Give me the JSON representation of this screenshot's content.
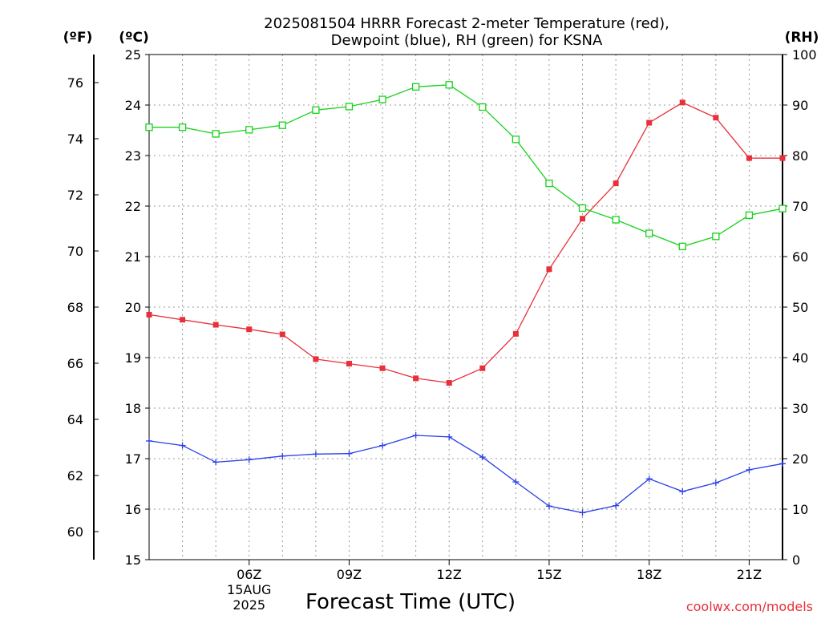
{
  "chart_data": {
    "type": "line",
    "title_line1": "2025081504 HRRR Forecast 2-meter Temperature (red),",
    "title_line2": "Dewpoint (blue), RH (green) for KSNA",
    "xlabel": "Forecast Time (UTC)",
    "credit": "coolwx.com/models",
    "unit_labels": {
      "fahrenheit": "(ºF)",
      "celsius": "(ºC)",
      "rh": "(RH)"
    },
    "x_range": [
      3,
      22
    ],
    "x": [
      3,
      4,
      5,
      6,
      7,
      8,
      9,
      10,
      11,
      12,
      13,
      14,
      15,
      16,
      17,
      18,
      19,
      20,
      21,
      22
    ],
    "x_ticks": [
      {
        "x": 6,
        "label": "06Z",
        "sub1": "15AUG",
        "sub2": "2025"
      },
      {
        "x": 9,
        "label": "09Z"
      },
      {
        "x": 12,
        "label": "12Z"
      },
      {
        "x": 15,
        "label": "15Z"
      },
      {
        "x": 18,
        "label": "18Z"
      },
      {
        "x": 21,
        "label": "21Z"
      }
    ],
    "celsius_range": [
      15,
      25
    ],
    "celsius_ticks": [
      "15",
      "16",
      "17",
      "18",
      "19",
      "20",
      "21",
      "22",
      "23",
      "24",
      "25"
    ],
    "fahrenheit_ticks": [
      "60",
      "62",
      "64",
      "66",
      "68",
      "70",
      "72",
      "74",
      "76"
    ],
    "rh_range": [
      0,
      100
    ],
    "rh_ticks": [
      "0",
      "10",
      "20",
      "30",
      "40",
      "50",
      "60",
      "70",
      "80",
      "90",
      "100"
    ],
    "series": [
      {
        "name": "Temperature",
        "axis": "celsius",
        "color": "#e8303a",
        "marker": "filled-square",
        "values": [
          19.85,
          19.75,
          19.65,
          19.56,
          19.46,
          18.97,
          18.88,
          18.79,
          18.59,
          18.5,
          18.79,
          19.47,
          20.75,
          21.75,
          22.45,
          23.65,
          24.05,
          23.75,
          22.95,
          22.95
        ]
      },
      {
        "name": "Dewpoint",
        "axis": "celsius",
        "color": "#2a3ee8",
        "marker": "plus",
        "values": [
          17.35,
          17.26,
          16.93,
          16.98,
          17.05,
          17.09,
          17.1,
          17.26,
          17.46,
          17.43,
          17.03,
          16.54,
          16.06,
          15.93,
          16.07,
          16.6,
          16.35,
          16.52,
          16.78,
          16.9
        ]
      },
      {
        "name": "RH",
        "axis": "rh",
        "color": "#18d21c",
        "marker": "open-square",
        "values": [
          85.6,
          85.6,
          84.3,
          85.1,
          86.0,
          89.0,
          89.7,
          91.1,
          93.6,
          94.0,
          89.6,
          83.2,
          74.5,
          69.6,
          67.3,
          64.6,
          62.0,
          64.0,
          68.2,
          69.5
        ]
      }
    ],
    "grid": true
  }
}
